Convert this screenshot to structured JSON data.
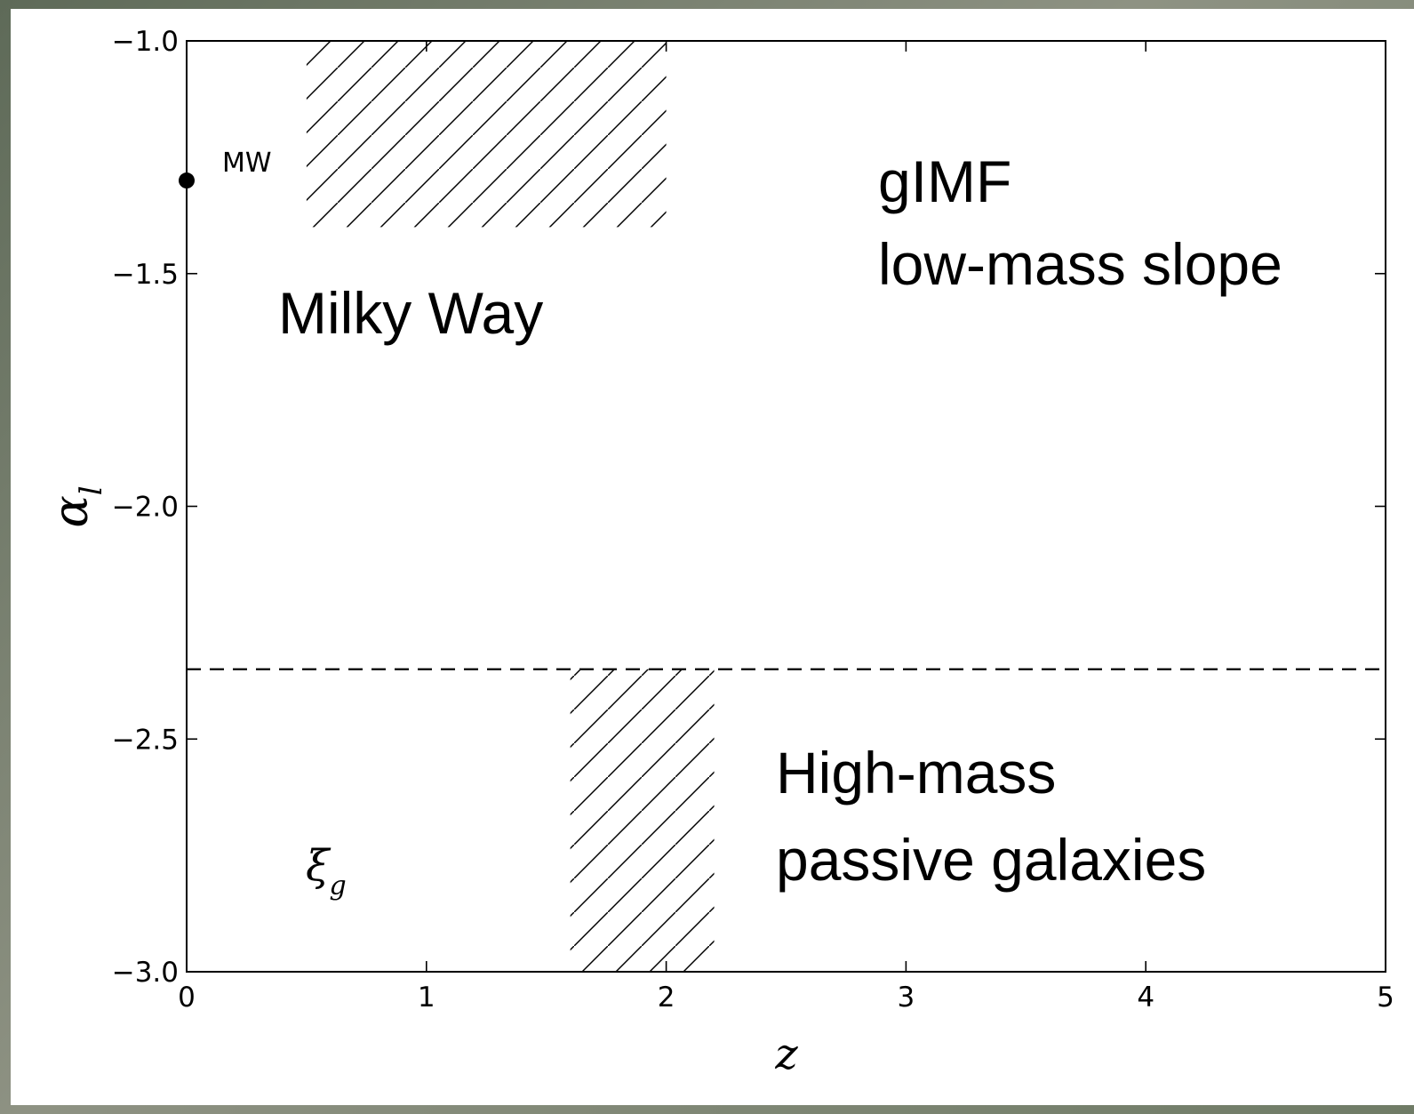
{
  "chart_data": {
    "type": "scatter",
    "title": "",
    "xlabel": "z",
    "ylabel": "α",
    "ylabel_subscript": "l",
    "xlim": [
      0,
      5
    ],
    "ylim": [
      -3.0,
      -1.0
    ],
    "xticks": [
      0,
      1,
      2,
      3,
      4,
      5
    ],
    "xtick_labels": [
      "0",
      "1",
      "2",
      "3",
      "4",
      "5"
    ],
    "yticks": [
      -1.0,
      -1.5,
      -2.0,
      -2.5,
      -3.0
    ],
    "ytick_labels": [
      "−1.0",
      "−1.5",
      "−2.0",
      "−2.5",
      "−3.0"
    ],
    "grid": false,
    "series": [
      {
        "name": "MW",
        "points": [
          {
            "x": 0,
            "y": -1.3
          }
        ]
      }
    ],
    "hatched_regions": [
      {
        "x": [
          0.5,
          2.0
        ],
        "y": [
          -1.4,
          -1.0
        ]
      },
      {
        "x": [
          1.6,
          2.2
        ],
        "y": [
          -3.0,
          -2.35
        ]
      }
    ],
    "reference_lines": [
      {
        "orientation": "horizontal",
        "y": -2.35,
        "style": "dashed"
      }
    ],
    "annotations": {
      "mw_point": "MW",
      "milky_way": "Milky Way",
      "glmf_line1": "gIMF",
      "glmf_line2": "low-mass slope",
      "high_mass_line1": "High-mass",
      "high_mass_line2": "passive galaxies",
      "xi_symbol": "ξ",
      "xi_subscript": "g"
    },
    "colors": {
      "ink": "#000000",
      "panel": "#ffffff"
    }
  }
}
